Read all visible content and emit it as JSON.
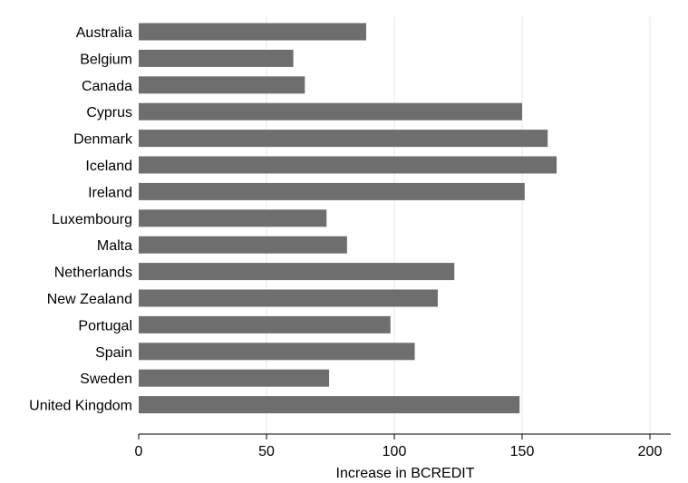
{
  "chart_data": {
    "type": "bar",
    "orientation": "horizontal",
    "categories": [
      "Australia",
      "Belgium",
      "Canada",
      "Cyprus",
      "Denmark",
      "Iceland",
      "Ireland",
      "Luxembourg",
      "Malta",
      "Netherlands",
      "New Zealand",
      "Portugal",
      "Spain",
      "Sweden",
      "United Kingdom"
    ],
    "values": [
      89,
      60.5,
      65,
      150,
      160,
      163.5,
      151,
      73.5,
      81.5,
      123.5,
      117,
      98.5,
      108,
      74.5,
      149
    ],
    "xlabel": "Increase in BCREDIT",
    "ylabel": "",
    "xlim": [
      0,
      210
    ],
    "xticks": [
      0,
      50,
      100,
      150,
      200
    ],
    "grid": "vertical",
    "bar_color": "#6e6e6e",
    "grid_color": "#eaeaea"
  }
}
